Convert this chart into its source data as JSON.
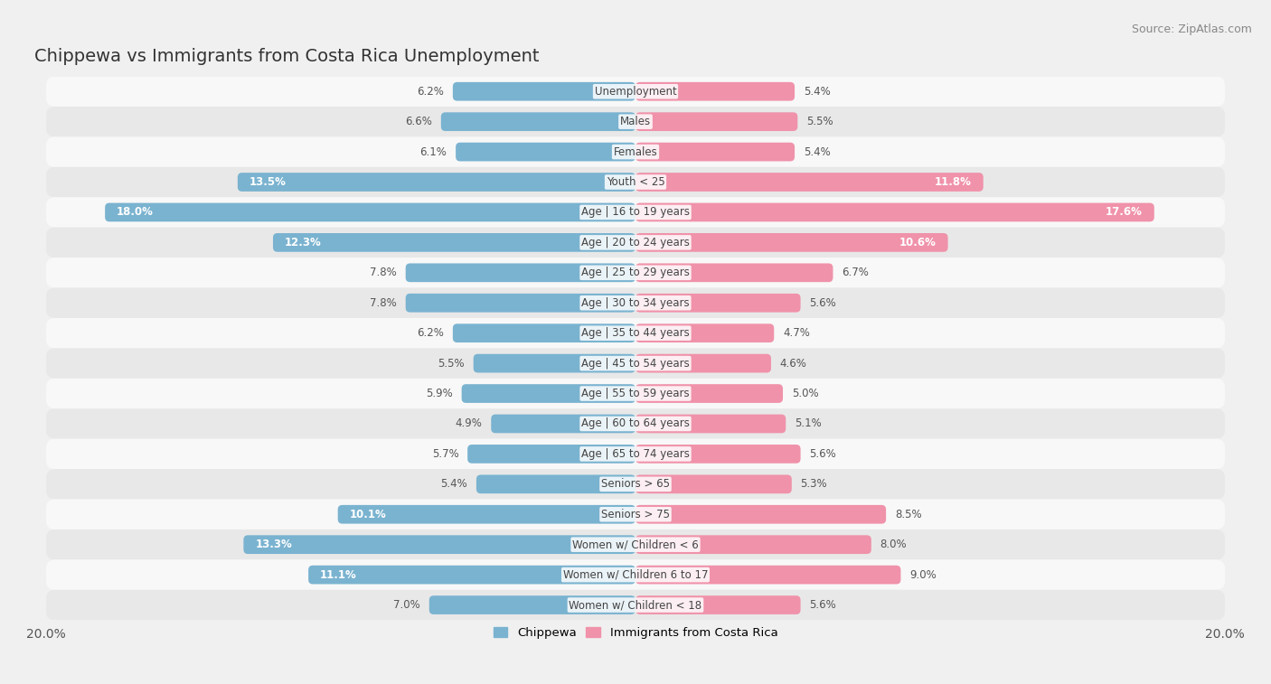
{
  "title": "Chippewa vs Immigrants from Costa Rica Unemployment",
  "source": "Source: ZipAtlas.com",
  "categories": [
    "Unemployment",
    "Males",
    "Females",
    "Youth < 25",
    "Age | 16 to 19 years",
    "Age | 20 to 24 years",
    "Age | 25 to 29 years",
    "Age | 30 to 34 years",
    "Age | 35 to 44 years",
    "Age | 45 to 54 years",
    "Age | 55 to 59 years",
    "Age | 60 to 64 years",
    "Age | 65 to 74 years",
    "Seniors > 65",
    "Seniors > 75",
    "Women w/ Children < 6",
    "Women w/ Children 6 to 17",
    "Women w/ Children < 18"
  ],
  "chippewa": [
    6.2,
    6.6,
    6.1,
    13.5,
    18.0,
    12.3,
    7.8,
    7.8,
    6.2,
    5.5,
    5.9,
    4.9,
    5.7,
    5.4,
    10.1,
    13.3,
    11.1,
    7.0
  ],
  "immigrants": [
    5.4,
    5.5,
    5.4,
    11.8,
    17.6,
    10.6,
    6.7,
    5.6,
    4.7,
    4.6,
    5.0,
    5.1,
    5.6,
    5.3,
    8.5,
    8.0,
    9.0,
    5.6
  ],
  "chippewa_color": "#7ab3d0",
  "immigrants_color": "#f092aa",
  "background_color": "#f0f0f0",
  "row_light_color": "#f8f8f8",
  "row_dark_color": "#e8e8e8",
  "max_val": 20.0,
  "legend_chippewa": "Chippewa",
  "legend_immigrants": "Immigrants from Costa Rica",
  "title_fontsize": 14,
  "source_fontsize": 9,
  "bar_height": 0.62,
  "label_threshold": 9.5
}
